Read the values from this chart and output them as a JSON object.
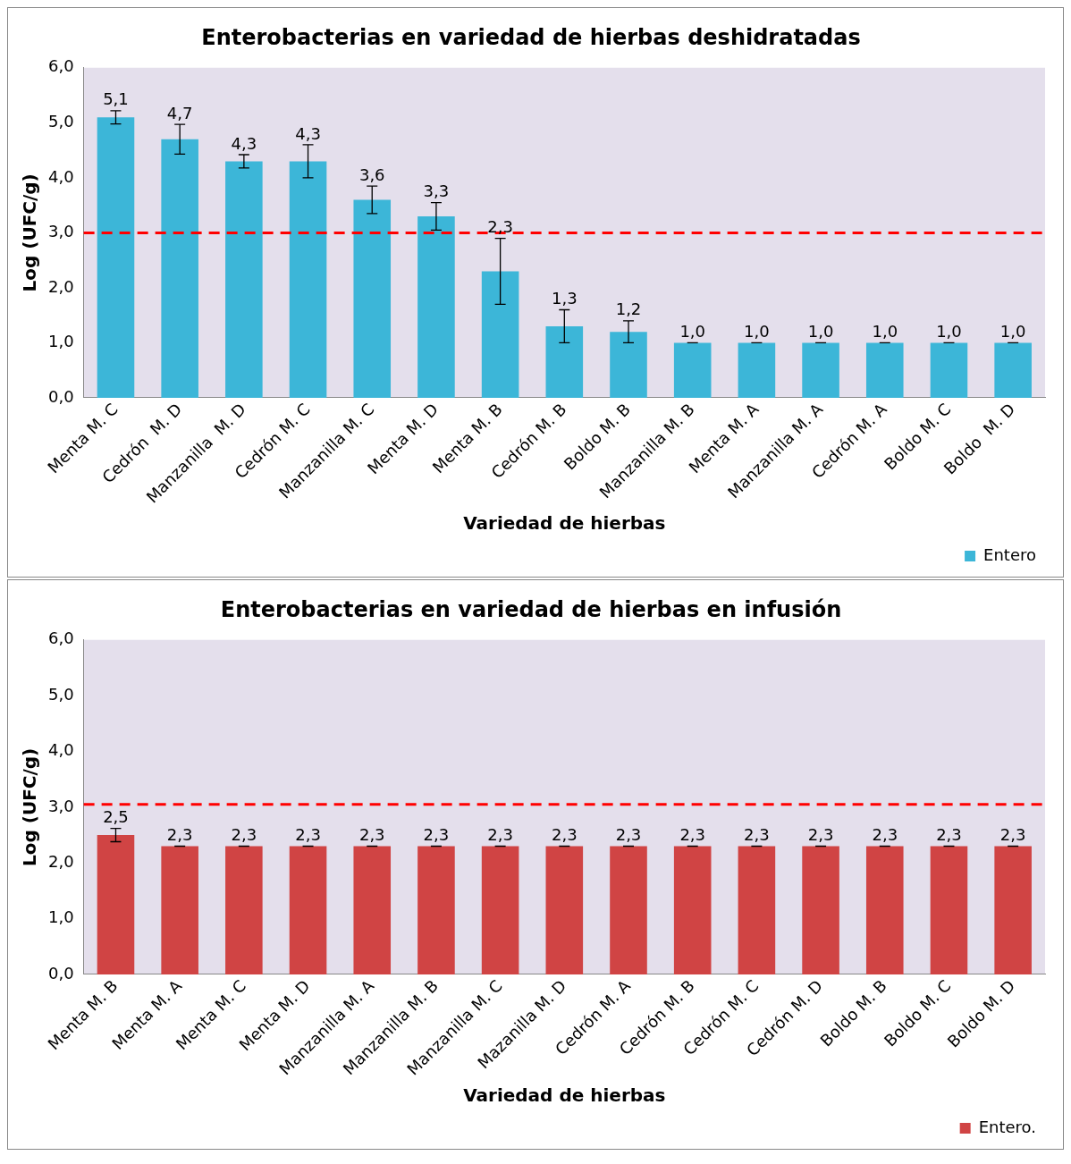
{
  "chart_data": [
    {
      "type": "bar",
      "title": "Enterobacterias en variedad de hierbas deshidratadas",
      "xlabel": "Variedad de hierbas",
      "ylabel": "Log (UFC/g)",
      "categories": [
        "Menta M. C",
        "Cedrón  M. D",
        "Manzanilla  M. D",
        "Cedrón M. C",
        "Manzanilla M. C",
        "Menta M. D",
        "Menta M. B",
        "Cedrón M. B",
        "Boldo M. B",
        "Manzanilla M. B",
        "Menta M. A",
        "Manzanilla M. A",
        "Cedrón M. A",
        "Boldo M. C",
        "Boldo  M. D"
      ],
      "series": [
        {
          "name": "Entero",
          "color": "#3cb6d8",
          "values": [
            5.1,
            4.7,
            4.3,
            4.3,
            3.6,
            3.3,
            2.3,
            1.3,
            1.2,
            1.0,
            1.0,
            1.0,
            1.0,
            1.0,
            1.0
          ],
          "errors": [
            0.12,
            0.27,
            0.12,
            0.3,
            0.25,
            0.25,
            0.6,
            0.3,
            0.2,
            0,
            0,
            0,
            0,
            0,
            0
          ],
          "value_labels": [
            "5,1",
            "4,7",
            "4,3",
            "4,3",
            "3,6",
            "3,3",
            "2,3",
            "1,3",
            "1,2",
            "1,0",
            "1,0",
            "1,0",
            "1,0",
            "1,0",
            "1,0"
          ]
        }
      ],
      "ylim": [
        0,
        6
      ],
      "yticks": [
        {
          "value": 0,
          "label": "0,0"
        },
        {
          "value": 1,
          "label": "1,0"
        },
        {
          "value": 2,
          "label": "2,0"
        },
        {
          "value": 3,
          "label": "3,0"
        },
        {
          "value": 4,
          "label": "4,0"
        },
        {
          "value": 5,
          "label": "5,0"
        },
        {
          "value": 6,
          "label": "6,0"
        }
      ],
      "ref_lines": [
        {
          "axis": "y",
          "value": 3,
          "color": "#ff0000",
          "line_style": "dashed"
        }
      ],
      "legend": "bottom right",
      "grid": false
    },
    {
      "type": "bar",
      "title": "Enterobacterias en variedad de hierbas en infusión",
      "xlabel": "Variedad de hierbas",
      "ylabel": "Log (UFC/g)",
      "categories": [
        "Menta M. B",
        "Menta M. A",
        "Menta M. C",
        "Menta M. D",
        "Manzanilla M. A",
        "Manzanilla M. B",
        "Manzanilla M. C",
        "Mazanilla M. D",
        "Cedrón M. A",
        "Cedrón M. B",
        "Cedrón M. C",
        "Cedrón M. D",
        "Boldo M. B",
        "Boldo M. C",
        "Boldo M. D"
      ],
      "series": [
        {
          "name": "Entero.",
          "color": "#d04444",
          "values": [
            2.5,
            2.3,
            2.3,
            2.3,
            2.3,
            2.3,
            2.3,
            2.3,
            2.3,
            2.3,
            2.3,
            2.3,
            2.3,
            2.3,
            2.3
          ],
          "errors": [
            0.12,
            0,
            0,
            0,
            0,
            0,
            0,
            0,
            0,
            0,
            0,
            0,
            0,
            0,
            0
          ],
          "value_labels": [
            "2,5",
            "2,3",
            "2,3",
            "2,3",
            "2,3",
            "2,3",
            "2,3",
            "2,3",
            "2,3",
            "2,3",
            "2,3",
            "2,3",
            "2,3",
            "2,3",
            "2,3"
          ]
        }
      ],
      "ylim": [
        0,
        6
      ],
      "yticks": [
        {
          "value": 0,
          "label": "0,0"
        },
        {
          "value": 1,
          "label": "1,0"
        },
        {
          "value": 2,
          "label": "2,0"
        },
        {
          "value": 3,
          "label": "3,0"
        },
        {
          "value": 4,
          "label": "4,0"
        },
        {
          "value": 5,
          "label": "5,0"
        },
        {
          "value": 6,
          "label": "6,0"
        }
      ],
      "ref_lines": [
        {
          "axis": "y",
          "value": 3.05,
          "color": "#ff0000",
          "line_style": "dashed"
        }
      ],
      "legend": "bottom right",
      "grid": false
    }
  ]
}
